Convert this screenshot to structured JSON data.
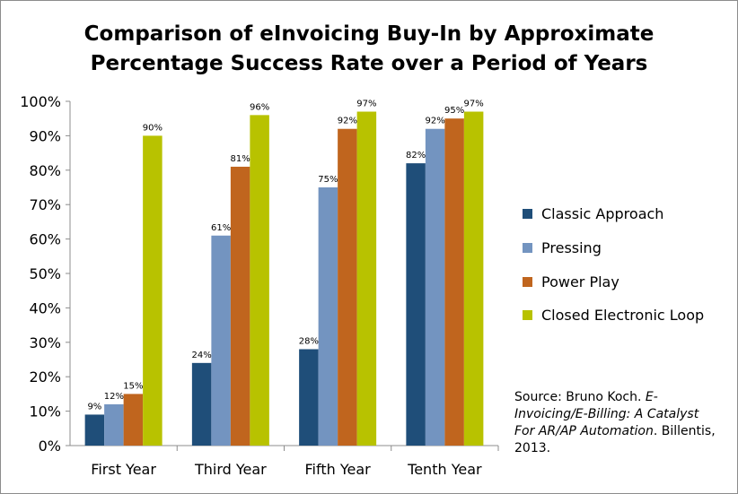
{
  "chart_data": {
    "type": "bar",
    "title_lines": [
      "Comparison of eInvoicing Buy-In by Approximate",
      "Percentage Success Rate over a Period of Years"
    ],
    "categories": [
      "First Year",
      "Third Year",
      "Fifth Year",
      "Tenth Year"
    ],
    "series": [
      {
        "name": "Classic Approach",
        "color": "#1f4e79",
        "values": [
          9,
          24,
          28,
          82
        ],
        "labels": [
          "9%",
          "24%",
          "28%",
          "82%"
        ]
      },
      {
        "name": "Pressing",
        "color": "#7394c0",
        "values": [
          12,
          61,
          75,
          92
        ],
        "labels": [
          "12%",
          "61%",
          "75%",
          "92%"
        ]
      },
      {
        "name": "Power Play",
        "color": "#c0651e",
        "values": [
          15,
          81,
          92,
          95
        ],
        "labels": [
          "15%",
          "81%",
          "92%",
          "95%"
        ]
      },
      {
        "name": "Closed Electronic Loop",
        "color": "#b8c200",
        "values": [
          90,
          96,
          97,
          97
        ],
        "labels": [
          "90%",
          "96%",
          "97%",
          "97%"
        ]
      }
    ],
    "y_ticks": [
      "0%",
      "10%",
      "20%",
      "30%",
      "40%",
      "50%",
      "60%",
      "70%",
      "80%",
      "90%",
      "100%"
    ],
    "ylim": [
      0,
      100
    ],
    "xlabel": "",
    "ylabel": "",
    "grid": false,
    "legend_position": "right"
  },
  "source": {
    "prefix": "Source: Bruno Koch. ",
    "title": "E-Invoicing/E-Billing: A Catalyst For AR/AP Automation",
    "suffix": ". Billentis, 2013."
  }
}
